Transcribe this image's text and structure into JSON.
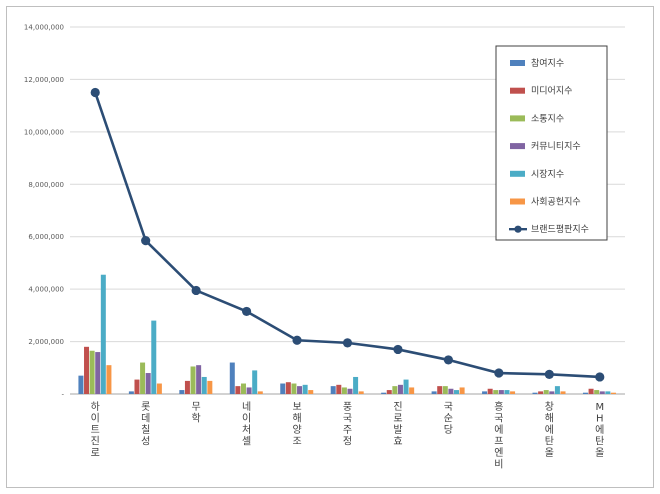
{
  "chart_data": {
    "type": "bar",
    "title": "",
    "xlabel": "",
    "ylabel": "",
    "ylim": [
      0,
      14000000
    ],
    "yticks": [
      "-",
      "2,000,000",
      "4,000,000",
      "6,000,000",
      "8,000,000",
      "10,000,000",
      "12,000,000",
      "14,000,000"
    ],
    "categories": [
      "하이트진로",
      "롯데칠성",
      "무학",
      "네이처셀",
      "보해양조",
      "풍국주정",
      "진로발효",
      "국순당",
      "흥국에프엔비",
      "창해에탄올",
      "MH에탄올"
    ],
    "grid": true,
    "legend_position": "right",
    "series": [
      {
        "name": "참여지수",
        "color": "#4f81bd",
        "values": [
          700000,
          100000,
          150000,
          1200000,
          400000,
          300000,
          50000,
          100000,
          100000,
          50000,
          50000
        ]
      },
      {
        "name": "미디어지수",
        "color": "#c0504d",
        "values": [
          1800000,
          550000,
          500000,
          300000,
          450000,
          350000,
          150000,
          300000,
          200000,
          100000,
          200000
        ]
      },
      {
        "name": "소통지수",
        "color": "#9bbb59",
        "values": [
          1650000,
          1200000,
          1050000,
          400000,
          400000,
          250000,
          300000,
          300000,
          150000,
          150000,
          150000
        ]
      },
      {
        "name": "커뮤니티지수",
        "color": "#8064a2",
        "values": [
          1600000,
          800000,
          1100000,
          250000,
          300000,
          200000,
          350000,
          200000,
          150000,
          100000,
          100000
        ]
      },
      {
        "name": "시장지수",
        "color": "#4bacc6",
        "values": [
          4550000,
          2800000,
          650000,
          900000,
          350000,
          650000,
          550000,
          150000,
          150000,
          300000,
          100000
        ]
      },
      {
        "name": "사회공헌지수",
        "color": "#f79646",
        "values": [
          1100000,
          400000,
          500000,
          100000,
          150000,
          100000,
          250000,
          250000,
          100000,
          100000,
          50000
        ]
      }
    ],
    "line_series": {
      "name": "브랜드평판지수",
      "color": "#2c4d75",
      "values": [
        11500000,
        5850000,
        3950000,
        3150000,
        2050000,
        1950000,
        1700000,
        1300000,
        800000,
        750000,
        650000
      ]
    }
  }
}
